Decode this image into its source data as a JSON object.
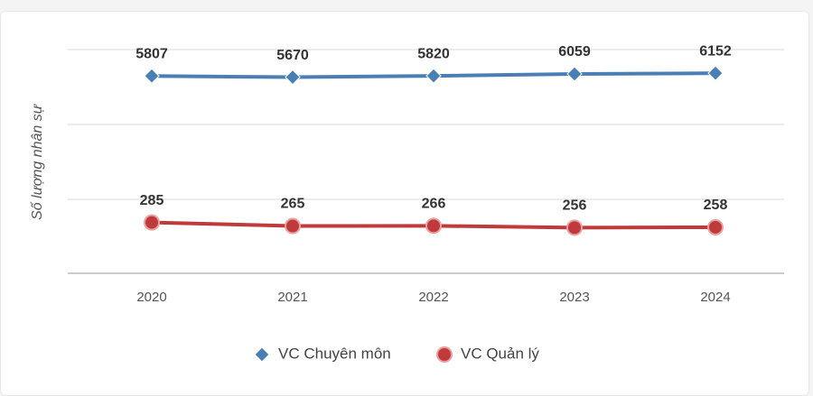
{
  "chart_data": {
    "type": "line",
    "ylabel": "Số lượng nhân sự",
    "categories": [
      "2020",
      "2021",
      "2022",
      "2023",
      "2024"
    ],
    "yscale": "log",
    "ylim": [
      100,
      10000
    ],
    "series": [
      {
        "name": "VC Chuyên môn",
        "color": "#4a7fb5",
        "marker": "diamond",
        "values": [
          5807,
          5670,
          5820,
          6059,
          6152
        ]
      },
      {
        "name": "VC Quản lý",
        "color": "#c0393b",
        "marker": "circle",
        "values": [
          285,
          265,
          266,
          256,
          258
        ]
      }
    ]
  }
}
